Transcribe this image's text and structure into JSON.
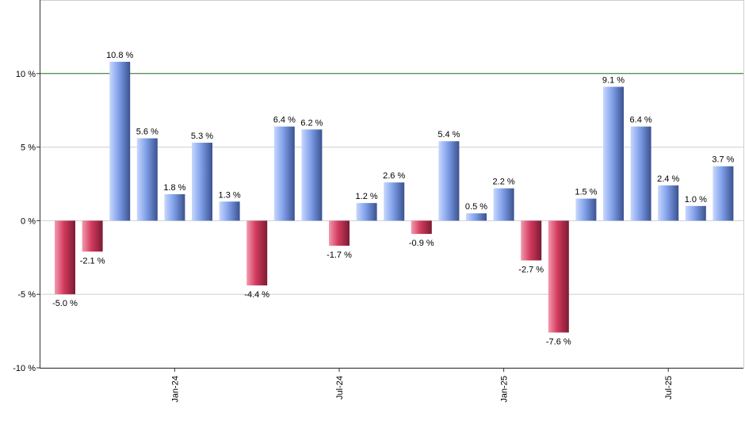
{
  "chart_data": {
    "type": "bar",
    "title": "",
    "xlabel": "",
    "ylabel": "",
    "ylim": [
      -10,
      15
    ],
    "y_ticks": [
      {
        "value": -10,
        "label": "-10 %"
      },
      {
        "value": -5,
        "label": "-5 %"
      },
      {
        "value": 0,
        "label": "0 %"
      },
      {
        "value": 5,
        "label": "5 %"
      },
      {
        "value": 10,
        "label": "10 %"
      }
    ],
    "x_ticks": [
      {
        "index": 4,
        "label": "Jan-24"
      },
      {
        "index": 10,
        "label": "Jul-24"
      },
      {
        "index": 16,
        "label": "Jan-25"
      },
      {
        "index": 22,
        "label": "Jul-25"
      }
    ],
    "reference_line": {
      "value": 10,
      "color": "#1e6b1e"
    },
    "grid": true,
    "positive_color": "#7f9fe8",
    "negative_color": "#d23a5e",
    "values": [
      -5.0,
      -2.1,
      10.8,
      5.6,
      1.8,
      5.3,
      1.3,
      -4.4,
      6.4,
      6.2,
      -1.7,
      1.2,
      2.6,
      -0.9,
      5.4,
      0.5,
      2.2,
      -2.7,
      -7.6,
      1.5,
      9.1,
      6.4,
      2.4,
      1.0,
      3.7
    ],
    "labels": [
      "-5.0 %",
      "-2.1 %",
      "10.8 %",
      "5.6 %",
      "1.8 %",
      "5.3 %",
      "1.3 %",
      "-4.4 %",
      "6.4 %",
      "6.2 %",
      "-1.7 %",
      "1.2 %",
      "2.6 %",
      "-0.9 %",
      "5.4 %",
      "0.5 %",
      "2.2 %",
      "-2.7 %",
      "-7.6 %",
      "1.5 %",
      "9.1 %",
      "6.4 %",
      "2.4 %",
      "1.0 %",
      "3.7 %"
    ]
  }
}
